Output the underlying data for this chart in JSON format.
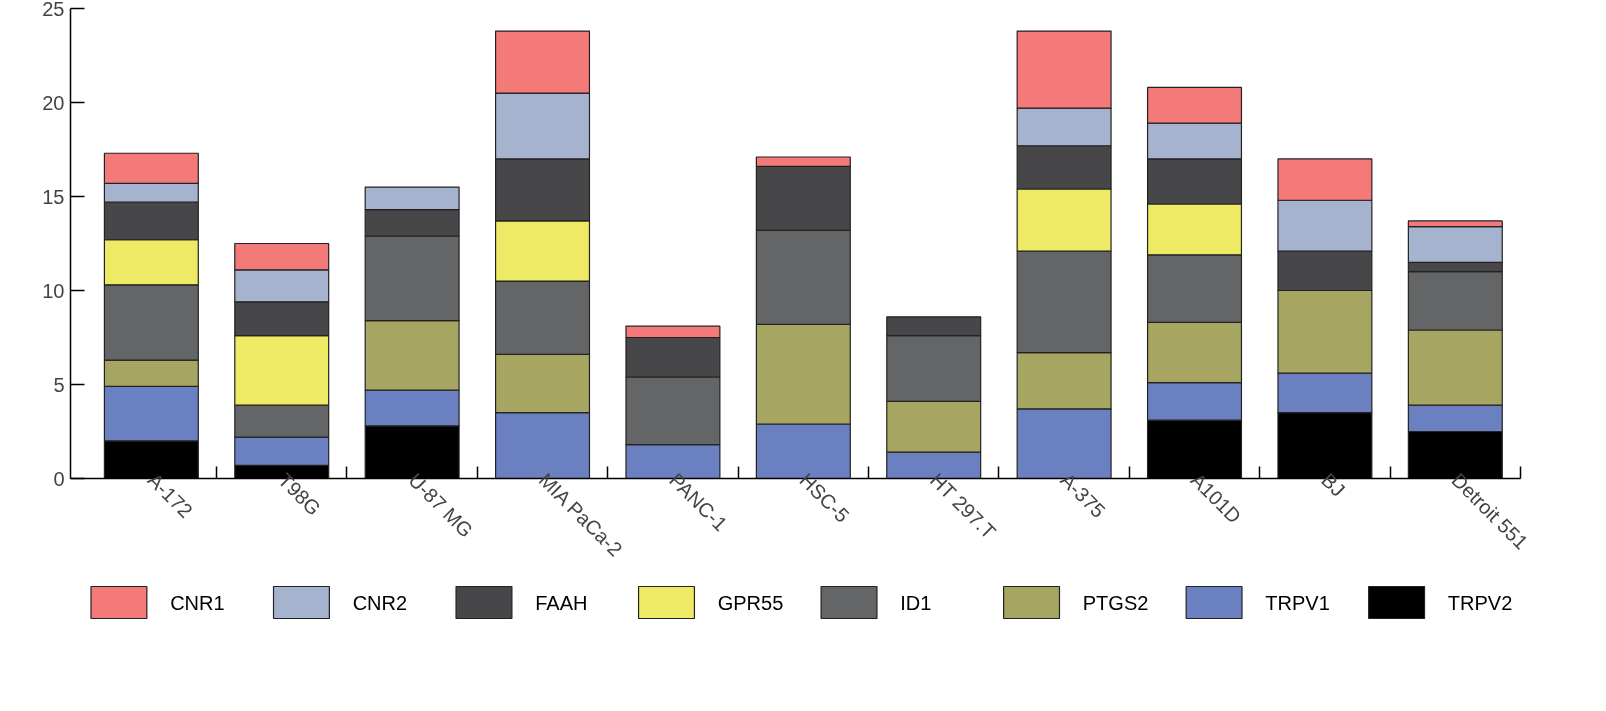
{
  "chart_data": {
    "type": "bar",
    "stacked": true,
    "categories": [
      "A-172",
      "T98G",
      "U-87 MG",
      "MIA PaCa-2",
      "PANC-1",
      "HSC-5",
      "HT 297.T",
      "A-375",
      "A101D",
      "BJ",
      "Detroit 551"
    ],
    "series": [
      {
        "name": "TRPV2",
        "color": "#000000",
        "values": [
          2.0,
          0.7,
          2.8,
          null,
          null,
          null,
          null,
          null,
          3.1,
          3.5,
          2.5
        ]
      },
      {
        "name": "TRPV1",
        "color": "#6a80c0",
        "values": [
          2.9,
          1.5,
          1.9,
          3.5,
          1.8,
          2.9,
          1.4,
          3.7,
          2.0,
          2.1,
          1.4
        ]
      },
      {
        "name": "PTGS2",
        "color": "#a6a662",
        "values": [
          1.4,
          null,
          3.7,
          3.1,
          null,
          5.3,
          2.7,
          3.0,
          3.2,
          4.4,
          4.0
        ]
      },
      {
        "name": "ID1",
        "color": "#646566",
        "values": [
          4.0,
          1.7,
          4.5,
          3.9,
          3.6,
          5.0,
          3.5,
          5.4,
          3.6,
          null,
          3.1
        ]
      },
      {
        "name": "GPR55",
        "color": "#eeea66",
        "values": [
          2.4,
          3.7,
          null,
          3.2,
          null,
          null,
          null,
          3.3,
          2.7,
          null,
          null
        ]
      },
      {
        "name": "FAAH",
        "color": "#474749",
        "values": [
          2.0,
          1.8,
          1.4,
          3.3,
          2.1,
          3.4,
          1.0,
          2.3,
          2.4,
          2.1,
          0.5
        ]
      },
      {
        "name": "CNR2",
        "color": "#a6b3cf",
        "values": [
          1.0,
          1.7,
          1.2,
          3.5,
          null,
          null,
          null,
          2.0,
          1.9,
          2.7,
          1.9
        ]
      },
      {
        "name": "CNR1",
        "color": "#f47a7a",
        "values": [
          1.6,
          1.4,
          null,
          3.3,
          0.6,
          0.5,
          null,
          4.1,
          1.9,
          2.2,
          0.3
        ]
      }
    ],
    "ylim": [
      0,
      25
    ],
    "yticks": [
      0,
      5,
      10,
      15,
      20,
      25
    ],
    "grid": false,
    "legend": "bottom"
  }
}
